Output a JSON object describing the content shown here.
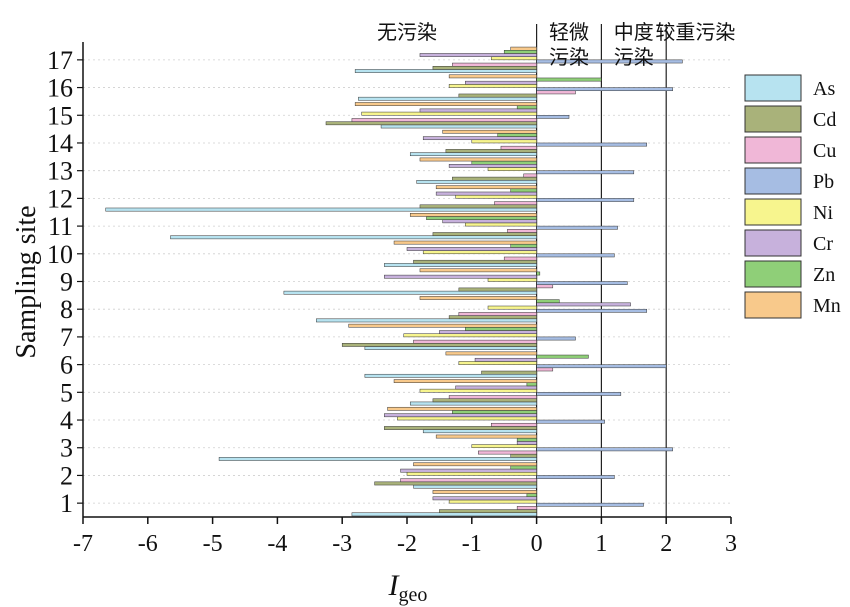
{
  "chart_data": {
    "type": "bar",
    "orientation": "horizontal",
    "xlabel": "I",
    "xlabel_sub": "geo",
    "ylabel": "Sampling site",
    "xlim": [
      -7,
      3
    ],
    "x_ticks": [
      "-7",
      "-6",
      "-5",
      "-4",
      "-3",
      "-2",
      "-1",
      "0",
      "1",
      "2",
      "3"
    ],
    "categories": [
      "1",
      "2",
      "3",
      "4",
      "5",
      "6",
      "7",
      "8",
      "9",
      "10",
      "11",
      "12",
      "13",
      "14",
      "15",
      "16",
      "17"
    ],
    "zone_lines": [
      0,
      1,
      2
    ],
    "zone_labels": [
      {
        "lines": [
          "无污染"
        ],
        "x": -2
      },
      {
        "lines": [
          "轻微",
          "污染"
        ],
        "x": 0.5
      },
      {
        "lines": [
          "中度",
          "污染"
        ],
        "x": 1.5
      },
      {
        "lines": [
          "较重污染"
        ],
        "x": 2.45
      }
    ],
    "legend_position": "right",
    "series": [
      {
        "name": "As",
        "color": "#b7e3f0",
        "values": [
          -2.85,
          -1.9,
          -4.9,
          -1.75,
          -1.95,
          -2.65,
          -2.65,
          -3.4,
          -3.9,
          -2.35,
          -5.65,
          -6.65,
          -1.85,
          -1.95,
          -2.4,
          -2.75,
          -2.8
        ]
      },
      {
        "name": "Cd",
        "color": "#a9b27a",
        "values": [
          -1.5,
          -2.5,
          -0.4,
          -2.35,
          -1.6,
          -0.85,
          -3.0,
          -1.35,
          -1.2,
          -1.9,
          -1.6,
          -1.8,
          -1.3,
          -1.4,
          -3.25,
          -1.2,
          -1.6
        ]
      },
      {
        "name": "Cu",
        "color": "#f0b7d7",
        "values": [
          -0.3,
          -2.1,
          -0.9,
          -0.7,
          -1.35,
          0.25,
          -1.9,
          -1.2,
          0.25,
          -0.5,
          -0.45,
          -0.65,
          -0.2,
          -0.55,
          -2.85,
          0.6,
          -1.3
        ]
      },
      {
        "name": "Pb",
        "color": "#a6bde3",
        "values": [
          1.65,
          1.2,
          2.1,
          1.05,
          1.3,
          2.0,
          0.6,
          1.7,
          1.4,
          1.2,
          1.25,
          1.5,
          1.5,
          1.7,
          0.5,
          2.1,
          2.25
        ]
      },
      {
        "name": "Ni",
        "color": "#f7f58e",
        "values": [
          -1.35,
          -2.0,
          -1.0,
          -2.15,
          -1.8,
          -1.2,
          -2.05,
          -0.75,
          -0.75,
          -1.75,
          -1.1,
          -1.25,
          -0.75,
          -1.0,
          -2.7,
          -1.35,
          -0.7
        ]
      },
      {
        "name": "Cr",
        "color": "#c7b1dc",
        "values": [
          -1.6,
          -2.1,
          -0.3,
          -2.35,
          -1.25,
          -0.95,
          -1.5,
          1.45,
          -2.35,
          -2.0,
          -1.45,
          -1.55,
          -1.35,
          -1.75,
          -1.8,
          -1.1,
          -1.8
        ]
      },
      {
        "name": "Zn",
        "color": "#8fcf78",
        "values": [
          -0.15,
          -0.4,
          -0.3,
          -1.3,
          -0.15,
          0.8,
          -1.1,
          0.35,
          0.05,
          -0.4,
          -1.7,
          -0.4,
          -1.0,
          -0.6,
          -0.3,
          1.0,
          -0.5
        ]
      },
      {
        "name": "Mn",
        "color": "#f8c98b",
        "values": [
          -1.6,
          -1.9,
          -1.55,
          -2.3,
          -2.2,
          -1.4,
          -2.9,
          -1.8,
          -1.8,
          -2.2,
          -1.95,
          -1.55,
          -1.8,
          -1.45,
          -2.8,
          -1.35,
          -0.4
        ]
      }
    ]
  }
}
